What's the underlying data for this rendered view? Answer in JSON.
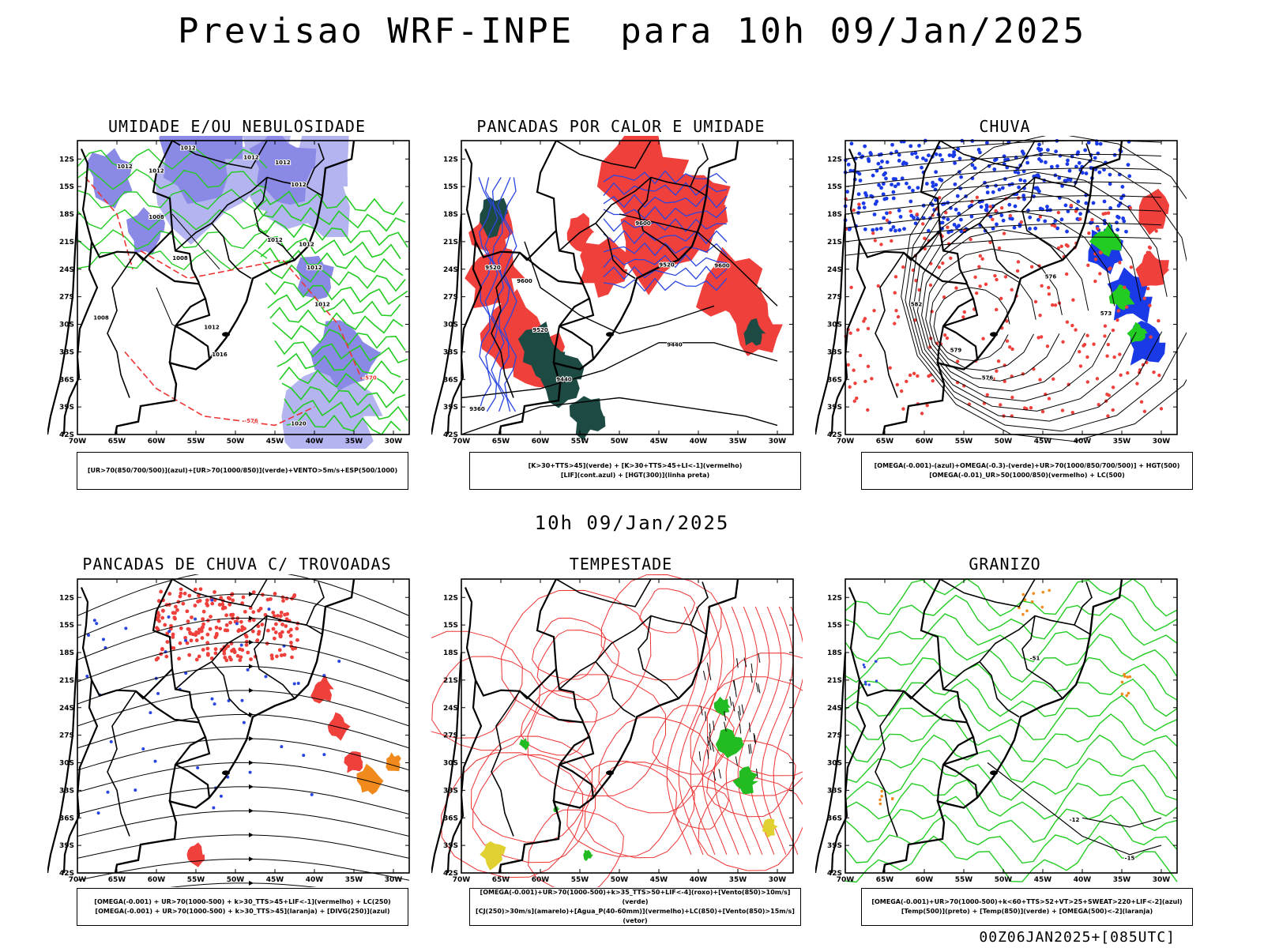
{
  "header": {
    "title": "Previsao WRF-INPE  para 10h 09/Jan/2025"
  },
  "middle_time": "10h 09/Jan/2025",
  "footer_run": "00Z06JAN2025+[085UTC]",
  "axes": {
    "lat_ticks": [
      "12S",
      "15S",
      "18S",
      "21S",
      "24S",
      "27S",
      "30S",
      "33S",
      "36S",
      "39S",
      "42S"
    ],
    "lon_ticks": [
      "70W",
      "65W",
      "60W",
      "55W",
      "50W",
      "45W",
      "40W",
      "35W",
      "30W"
    ]
  },
  "panels": [
    {
      "title": "UMIDADE E/OU NEBULOSIDADE",
      "legend": [
        "[UR>70(850/700/500)](azul)+[UR>70(1000/850)](verde)+VENTO>5m/s+ESP(500/1000)"
      ]
    },
    {
      "title": "PANCADAS POR CALOR E UMIDADE",
      "legend": [
        "[K>30+TTS>45](verde) + [K>30+TTS>45+LI<-1](vermelho)",
        "[LIF](cont.azul) + [HGT(300)](linha preta)"
      ]
    },
    {
      "title": "CHUVA",
      "legend": [
        "[OMEGA(-0.001)-(azul)+OMEGA(-0.3)-(verde)+UR>70(1000/850/700/500)] + HGT(500)",
        "[OMEGA(-0.01)_UR>50(1000/850)(vermelho) + LC(500)"
      ]
    },
    {
      "title": "PANCADAS DE CHUVA C/ TROVOADAS",
      "legend": [
        "[OMEGA(-0.001) + UR>70(1000-500) + k>30_TTS>45+LIF<-1](vermelho) + LC(250)",
        "[OMEGA(-0.001) + UR>70(1000-500) + k>30_TTS>45](laranja) + [DIVG(250)](azul)"
      ]
    },
    {
      "title": "TEMPESTADE",
      "legend": [
        "[OMEGA(-0.001)+UR>70(1000-500)+k>35_TTS>50+LIF<-4](roxo)+[Vento(850)>10m/s](verde)",
        "[CJ(250)>30m/s](amarelo)+[Agua_P(40-60mm)](vermelho)+LC(850)+[Vento(850)>15m/s](vetor)"
      ]
    },
    {
      "title": "GRANIZO",
      "legend": [
        "[OMEGA(-0.001)+UR>70(1000-500)+k<60+TTS>52+VT>25+SWEAT>220+LIF<-2](azul)",
        "[Temp(500)](preto) + [Temp(850)](verde) + [OMEGA(500)<-2](laranja)"
      ]
    }
  ],
  "contour_labels": {
    "p1": [
      "1012",
      "1012",
      "1012",
      "1012",
      "1012",
      "1008",
      "1008",
      "1012",
      "1012",
      "1012",
      "1008",
      "1012",
      "1012",
      "1012",
      "1016",
      "1020",
      "-576",
      "-570"
    ],
    "p2": [
      "9600",
      "9520",
      "9600",
      "9520",
      "9440",
      "9440",
      "9600",
      "9520",
      "9360"
    ],
    "p3": [
      "576",
      "582",
      "579",
      "576",
      "573"
    ],
    "p6": [
      "-12",
      "-15",
      "-51"
    ]
  },
  "chart_data": [
    {
      "type": "heatmap",
      "panel": "UMIDADE E/OU NEBULOSIDADE",
      "domain": {
        "lon": [
          -70,
          -30
        ],
        "lat": [
          -42,
          -10
        ]
      },
      "fields": [
        "UR>70 850/700/500 (azul)",
        "UR>70 1000/850 (verde)",
        "VENTO>5m/s",
        "ESP 500/1000 contours"
      ],
      "colors": {
        "blue_fill": "#8a8ae6",
        "light_blue": "#b4b4f0",
        "green": "#22cc22",
        "red": "#ee3333"
      }
    },
    {
      "type": "heatmap",
      "panel": "PANCADAS POR CALOR E UMIDADE",
      "domain": {
        "lon": [
          -70,
          -30
        ],
        "lat": [
          -42,
          -10
        ]
      },
      "fields": [
        "K>30+TTS>45 (verde)",
        "K>30+TTS>45+LI<-1 (vermelho)",
        "LIF (cont.azul)",
        "HGT 300 (linha preta)"
      ],
      "colors": {
        "red": "#f0403c",
        "dark_green": "#1e4a44",
        "blue": "#2a46e0"
      }
    },
    {
      "type": "heatmap",
      "panel": "CHUVA",
      "domain": {
        "lon": [
          -70,
          -30
        ],
        "lat": [
          -42,
          -10
        ]
      },
      "fields": [
        "OMEGA -0.001 (azul)",
        "OMEGA -0.3 (verde)",
        "OMEGA -0.01 UR>50 (vermelho)",
        "HGT 500",
        "LC 500"
      ],
      "colors": {
        "blue": "#1a3ae8",
        "green": "#22cc22",
        "red": "#f0403c"
      }
    },
    {
      "type": "heatmap",
      "panel": "PANCADAS DE CHUVA C/ TROVOADAS",
      "domain": {
        "lon": [
          -70,
          -30
        ],
        "lat": [
          -42,
          -10
        ]
      },
      "fields": [
        "vermelho",
        "laranja",
        "DIVG 250 (azul)",
        "LC 250"
      ],
      "colors": {
        "red": "#f0403c",
        "orange": "#f08a1c",
        "blue": "#2a46e0"
      }
    },
    {
      "type": "heatmap",
      "panel": "TEMPESTADE",
      "domain": {
        "lon": [
          -70,
          -30
        ],
        "lat": [
          -42,
          -10
        ]
      },
      "fields": [
        "roxo",
        "Vento 850>10m/s (verde)",
        "CJ 250>30m/s (amarelo)",
        "Agua_P 40-60mm (vermelho)",
        "LC 850"
      ],
      "colors": {
        "red": "#ee3333",
        "green": "#22bb22",
        "yellow": "#e0d030"
      }
    },
    {
      "type": "heatmap",
      "panel": "GRANIZO",
      "domain": {
        "lon": [
          -70,
          -30
        ],
        "lat": [
          -42,
          -10
        ]
      },
      "fields": [
        "azul",
        "Temp 500 (preto)",
        "Temp 850 (verde)",
        "OMEGA 500<-2 (laranja)"
      ],
      "colors": {
        "green": "#22cc22",
        "orange": "#f08a1c",
        "blue": "#2a46e0"
      }
    }
  ]
}
